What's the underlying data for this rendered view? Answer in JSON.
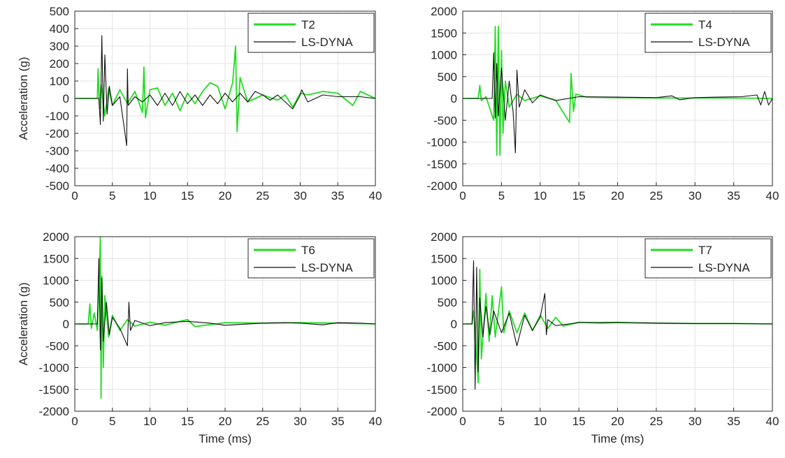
{
  "chart_data": [
    {
      "type": "line",
      "xlabel": "",
      "ylabel": "Acceleration (g)",
      "xlim": [
        0,
        40
      ],
      "ylim": [
        -500,
        500
      ],
      "xticks": [
        0,
        5,
        10,
        15,
        20,
        25,
        30,
        35,
        40
      ],
      "yticks": [
        -500,
        -400,
        -300,
        -200,
        -100,
        0,
        100,
        200,
        300,
        400,
        500
      ],
      "grid": true,
      "legend_position": "top-right",
      "series": [
        {
          "name": "T2",
          "color": "#22dd22",
          "x": [
            0,
            3.0,
            3.1,
            3.3,
            3.5,
            4.0,
            4.5,
            5.0,
            6.0,
            7.0,
            8.0,
            9.0,
            9.2,
            9.4,
            10.0,
            11.0,
            12.0,
            13.0,
            14.0,
            15.0,
            16.0,
            17.0,
            18.0,
            19.0,
            20.0,
            21.0,
            21.4,
            21.6,
            22.0,
            23.0,
            25.0,
            27.0,
            28.0,
            29.0,
            30.0,
            31.0,
            33.0,
            35.0,
            37.0,
            38.0,
            40.0
          ],
          "y": [
            0,
            0,
            170,
            -60,
            80,
            -100,
            60,
            -40,
            50,
            -30,
            40,
            -80,
            180,
            -110,
            50,
            60,
            -40,
            30,
            -70,
            30,
            -30,
            40,
            90,
            70,
            -60,
            90,
            300,
            -190,
            120,
            -20,
            20,
            -10,
            20,
            -50,
            30,
            20,
            40,
            30,
            -40,
            40,
            0
          ]
        },
        {
          "name": "LS-DYNA",
          "color": "#111111",
          "x": [
            0,
            3.2,
            3.4,
            3.6,
            3.8,
            4.0,
            4.3,
            4.6,
            5.0,
            6.0,
            6.9,
            7.0,
            7.1,
            8.0,
            9.0,
            10.0,
            11.0,
            12.0,
            13.0,
            14.0,
            15.0,
            16.0,
            17.0,
            18.0,
            19.0,
            20.0,
            21.0,
            22.0,
            23.0,
            24.0,
            25.0,
            26.0,
            27.0,
            28.0,
            29.0,
            30.0,
            30.2,
            31.0,
            33.0,
            35.0,
            38.0,
            40.0
          ],
          "y": [
            0,
            0,
            -150,
            360,
            -130,
            250,
            -90,
            70,
            -40,
            10,
            -270,
            170,
            -40,
            10,
            -20,
            20,
            -40,
            30,
            -40,
            40,
            -30,
            20,
            -40,
            20,
            -30,
            30,
            -20,
            30,
            -20,
            40,
            20,
            -10,
            20,
            -20,
            -60,
            20,
            50,
            -20,
            20,
            10,
            10,
            0
          ]
        }
      ]
    },
    {
      "type": "line",
      "xlabel": "",
      "ylabel": "",
      "xlim": [
        0,
        40
      ],
      "ylim": [
        -2000,
        2000
      ],
      "xticks": [
        0,
        5,
        10,
        15,
        20,
        25,
        30,
        35,
        40
      ],
      "yticks": [
        -2000,
        -1500,
        -1000,
        -500,
        0,
        500,
        1000,
        1500,
        2000
      ],
      "grid": true,
      "legend_position": "top-right",
      "series": [
        {
          "name": "T4",
          "color": "#22dd22",
          "x": [
            0,
            2.0,
            2.2,
            2.4,
            3.0,
            4.0,
            4.2,
            4.4,
            4.6,
            4.8,
            5.0,
            5.2,
            5.5,
            6.0,
            7.0,
            8.0,
            10.0,
            12.0,
            13.8,
            14.0,
            14.3,
            14.6,
            16.0,
            20.0,
            25.0,
            30.0,
            35.0,
            40.0
          ],
          "y": [
            0,
            0,
            300,
            -50,
            40,
            -500,
            1650,
            -1300,
            1650,
            -1300,
            1100,
            -800,
            400,
            -200,
            100,
            -50,
            60,
            -40,
            -550,
            570,
            -300,
            100,
            30,
            20,
            10,
            10,
            10,
            0
          ]
        },
        {
          "name": "LS-DYNA",
          "color": "#111111",
          "x": [
            0,
            3.8,
            4.0,
            4.2,
            4.4,
            4.6,
            5.0,
            5.5,
            6.0,
            6.5,
            6.8,
            7.0,
            7.3,
            8.0,
            9.0,
            10.0,
            12.0,
            15.0,
            20.0,
            25.0,
            27.0,
            28.0,
            30.0,
            33.0,
            36.0,
            38.0,
            38.5,
            39.0,
            39.5,
            40.0
          ],
          "y": [
            0,
            0,
            1050,
            -450,
            800,
            -400,
            700,
            -500,
            400,
            -300,
            -1250,
            650,
            -200,
            200,
            -100,
            80,
            -50,
            40,
            30,
            20,
            60,
            -30,
            20,
            30,
            40,
            80,
            -150,
            160,
            -150,
            0
          ]
        }
      ]
    },
    {
      "type": "line",
      "xlabel": "Time (ms)",
      "ylabel": "Acceleration (g)",
      "xlim": [
        0,
        40
      ],
      "ylim": [
        -2000,
        2000
      ],
      "xticks": [
        0,
        5,
        10,
        15,
        20,
        25,
        30,
        35,
        40
      ],
      "yticks": [
        -2000,
        -1500,
        -1000,
        -500,
        0,
        500,
        1000,
        1500,
        2000
      ],
      "grid": true,
      "legend_position": "top-right",
      "series": [
        {
          "name": "T6",
          "color": "#22dd22",
          "x": [
            0,
            1.8,
            2.0,
            2.2,
            2.6,
            3.0,
            3.4,
            3.5,
            3.6,
            3.8,
            4.0,
            4.5,
            5.0,
            6.0,
            7.0,
            8.0,
            10.0,
            12.0,
            14.0,
            15.0,
            16.0,
            20.0,
            25.0,
            30.0,
            35.0,
            40.0
          ],
          "y": [
            0,
            0,
            460,
            -100,
            250,
            -150,
            2000,
            -1700,
            1100,
            -1000,
            650,
            -300,
            200,
            -150,
            100,
            -50,
            40,
            -30,
            60,
            100,
            -60,
            30,
            20,
            30,
            20,
            0
          ]
        },
        {
          "name": "LS-DYNA",
          "color": "#111111",
          "x": [
            0,
            3.0,
            3.2,
            3.4,
            3.6,
            3.8,
            4.2,
            4.6,
            5.0,
            6.0,
            7.0,
            7.2,
            7.4,
            8.0,
            10.0,
            12.0,
            15.0,
            18.0,
            20.0,
            25.0,
            28.0,
            30.0,
            33.0,
            35.0,
            38.0,
            40.0
          ],
          "y": [
            0,
            0,
            1500,
            -600,
            1050,
            -400,
            500,
            -250,
            150,
            -100,
            -500,
            500,
            -150,
            80,
            -40,
            30,
            60,
            20,
            -30,
            20,
            30,
            20,
            -20,
            30,
            20,
            0
          ]
        }
      ]
    },
    {
      "type": "line",
      "xlabel": "Time (ms)",
      "ylabel": "",
      "xlim": [
        0,
        40
      ],
      "ylim": [
        -2000,
        2000
      ],
      "xticks": [
        0,
        5,
        10,
        15,
        20,
        25,
        30,
        35,
        40
      ],
      "yticks": [
        -2000,
        -1500,
        -1000,
        -500,
        0,
        500,
        1000,
        1500,
        2000
      ],
      "grid": true,
      "legend_position": "top-right",
      "series": [
        {
          "name": "T7",
          "color": "#22dd22",
          "x": [
            0,
            1.2,
            1.4,
            1.6,
            2.0,
            2.2,
            2.4,
            3.0,
            3.4,
            3.8,
            4.2,
            5.0,
            5.3,
            6.0,
            7.0,
            8.0,
            9.0,
            10.0,
            11.0,
            12.0,
            13.0,
            15.0,
            18.0,
            20.0,
            25.0,
            30.0,
            35.0,
            40.0
          ],
          "y": [
            0,
            0,
            300,
            -100,
            -1350,
            1250,
            -800,
            700,
            -400,
            650,
            -300,
            850,
            -200,
            300,
            -200,
            250,
            -150,
            200,
            -100,
            150,
            -50,
            40,
            20,
            30,
            20,
            10,
            10,
            0
          ]
        },
        {
          "name": "LS-DYNA",
          "color": "#111111",
          "x": [
            0,
            1.2,
            1.4,
            1.6,
            1.8,
            2.0,
            2.2,
            2.6,
            3.0,
            3.5,
            4.0,
            5.0,
            6.0,
            7.0,
            8.0,
            9.0,
            10.0,
            10.6,
            10.8,
            11.0,
            12.0,
            15.0,
            20.0,
            25.0,
            30.0,
            35.0,
            40.0
          ],
          "y": [
            0,
            0,
            1450,
            -1500,
            1300,
            -1100,
            600,
            -300,
            400,
            -250,
            300,
            -200,
            250,
            -500,
            200,
            -150,
            150,
            700,
            -250,
            100,
            -40,
            30,
            40,
            20,
            10,
            10,
            0
          ]
        }
      ]
    }
  ]
}
